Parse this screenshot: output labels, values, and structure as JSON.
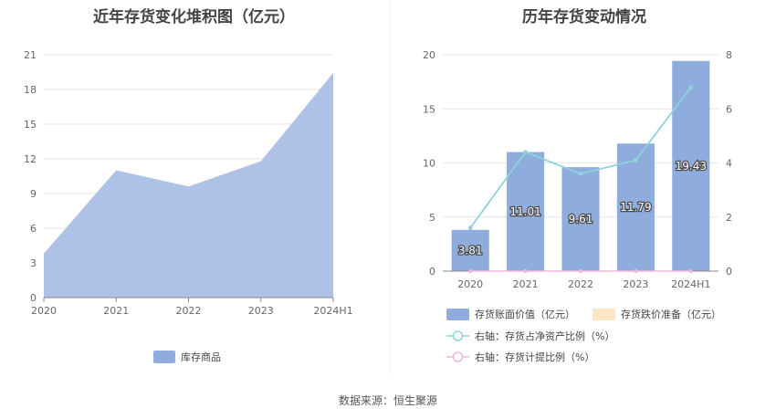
{
  "chart_data": [
    {
      "type": "area",
      "title": "近年存货变化堆积图（亿元）",
      "categories": [
        "2020",
        "2021",
        "2022",
        "2023",
        "2024H1"
      ],
      "series": [
        {
          "name": "库存商品",
          "values": [
            3.81,
            11.01,
            9.61,
            11.79,
            19.43
          ]
        }
      ],
      "yticks": [
        "0",
        "3",
        "6",
        "9",
        "12",
        "15",
        "18",
        "21"
      ],
      "ylim": [
        0,
        21
      ],
      "grid": true,
      "legend": "bottom-center",
      "colors": {
        "area": "#aec2e6",
        "legend": "#8eaddc"
      }
    },
    {
      "type": "bar",
      "title": "历年存货变动情况",
      "categories": [
        "2020",
        "2021",
        "2022",
        "2023",
        "2024H1"
      ],
      "series": [
        {
          "name": "存货账面价值（亿元）",
          "values": [
            3.81,
            11.01,
            9.61,
            11.79,
            19.43
          ],
          "axis": "left",
          "type": "bar"
        },
        {
          "name": "存货跌价准备（亿元）",
          "values": [
            0,
            0,
            0,
            0,
            0
          ],
          "axis": "left",
          "type": "bar"
        },
        {
          "name": "右轴：存货占净资产比例（%）",
          "values": [
            1.6,
            4.4,
            3.6,
            4.1,
            6.8
          ],
          "axis": "right",
          "type": "line"
        },
        {
          "name": "右轴：存货计提比例（%）",
          "values": [
            0,
            0,
            0,
            0,
            0
          ],
          "axis": "right",
          "type": "line"
        }
      ],
      "data_labels": [
        "3.81",
        "11.01",
        "9.61",
        "11.79",
        "19.43"
      ],
      "yticks_left": [
        "0",
        "5",
        "10",
        "15",
        "20"
      ],
      "yticks_right": [
        "0",
        "2",
        "4",
        "6",
        "8"
      ],
      "ylim_left": [
        0,
        20
      ],
      "ylim_right": [
        0,
        8
      ],
      "grid": true,
      "legend": "bottom",
      "colors": {
        "bar": "#8eaddc",
        "bar2": "#fde6c4",
        "line": "#8fd3da",
        "line2": "#f0b8d8"
      }
    }
  ],
  "source": "数据来源：恒生聚源"
}
